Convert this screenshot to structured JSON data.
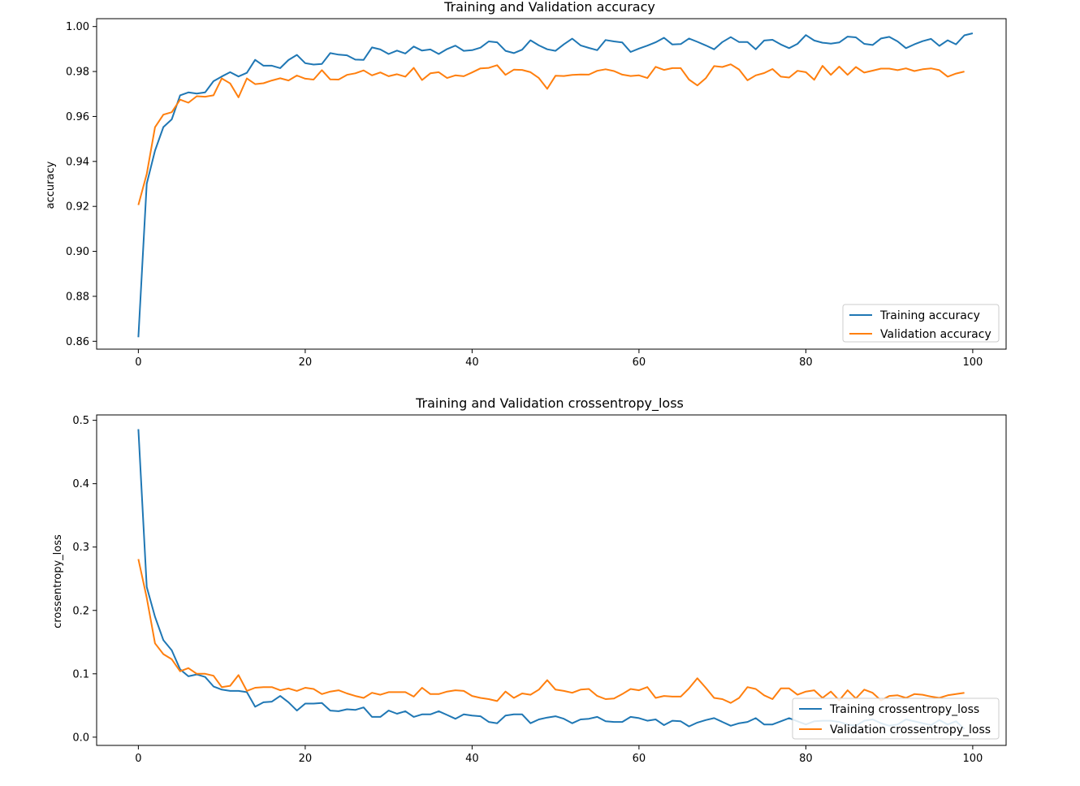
{
  "chart_data": [
    {
      "type": "line",
      "title": "Training and Validation accuracy",
      "xlabel": "",
      "ylabel": "accuracy",
      "xlim": [
        -5,
        104
      ],
      "ylim": [
        0.8565,
        1.0035
      ],
      "xticks": [
        0,
        20,
        40,
        60,
        80,
        100
      ],
      "xtick_labels": [
        "0",
        "20",
        "40",
        "60",
        "80",
        "100"
      ],
      "yticks": [
        0.86,
        0.88,
        0.9,
        0.92,
        0.94,
        0.96,
        0.98,
        1.0
      ],
      "ytick_labels": [
        "0.86",
        "0.88",
        "0.90",
        "0.92",
        "0.94",
        "0.96",
        "0.98",
        "1.00"
      ],
      "grid": false,
      "legend_position": "lower-right",
      "series": [
        {
          "name": "Training accuracy",
          "color": "#1f77b4",
          "values": [
            0.8618,
            0.9301,
            0.9448,
            0.9553,
            0.9587,
            0.9694,
            0.9707,
            0.9702,
            0.9707,
            0.9757,
            0.9778,
            0.9797,
            0.9778,
            0.9794,
            0.9852,
            0.9826,
            0.9826,
            0.9815,
            0.9851,
            0.9874,
            0.9837,
            0.9831,
            0.9834,
            0.9882,
            0.9875,
            0.9872,
            0.9853,
            0.9852,
            0.9907,
            0.9898,
            0.9878,
            0.9893,
            0.988,
            0.9911,
            0.9893,
            0.9898,
            0.9878,
            0.99,
            0.9915,
            0.9892,
            0.9895,
            0.9906,
            0.9934,
            0.993,
            0.9892,
            0.9882,
            0.9897,
            0.9939,
            0.9916,
            0.9899,
            0.9892,
            0.9921,
            0.9946,
            0.9916,
            0.9905,
            0.9895,
            0.994,
            0.9934,
            0.9929,
            0.9887,
            0.9902,
            0.9915,
            0.993,
            0.995,
            0.992,
            0.9922,
            0.9947,
            0.9932,
            0.9916,
            0.9899,
            0.9931,
            0.9953,
            0.9931,
            0.9931,
            0.9899,
            0.9938,
            0.9941,
            0.992,
            0.9904,
            0.9923,
            0.9962,
            0.9938,
            0.9928,
            0.9924,
            0.9929,
            0.9955,
            0.9952,
            0.9923,
            0.9918,
            0.9947,
            0.9954,
            0.9934,
            0.9904,
            0.9921,
            0.9935,
            0.9945,
            0.9914,
            0.9939,
            0.9921,
            0.9961,
            0.997
          ]
        },
        {
          "name": "Validation accuracy",
          "color": "#ff7f0e",
          "values": [
            0.9206,
            0.9344,
            0.9552,
            0.9608,
            0.9619,
            0.9675,
            0.9661,
            0.969,
            0.9688,
            0.9694,
            0.9769,
            0.9747,
            0.9685,
            0.9769,
            0.9744,
            0.9748,
            0.976,
            0.977,
            0.976,
            0.9782,
            0.9768,
            0.9764,
            0.9806,
            0.9765,
            0.9764,
            0.9785,
            0.9792,
            0.9805,
            0.9783,
            0.9796,
            0.9779,
            0.9788,
            0.9777,
            0.9816,
            0.9762,
            0.9792,
            0.9797,
            0.9771,
            0.9783,
            0.9779,
            0.9796,
            0.9814,
            0.9816,
            0.9828,
            0.9785,
            0.9808,
            0.9807,
            0.9797,
            0.9771,
            0.9723,
            0.9781,
            0.978,
            0.9785,
            0.9787,
            0.9786,
            0.9803,
            0.981,
            0.9802,
            0.9786,
            0.978,
            0.9783,
            0.9771,
            0.9821,
            0.9807,
            0.9815,
            0.9815,
            0.9764,
            0.9738,
            0.977,
            0.9824,
            0.982,
            0.9832,
            0.9809,
            0.9761,
            0.9783,
            0.9793,
            0.9811,
            0.9777,
            0.9773,
            0.9803,
            0.9797,
            0.9763,
            0.9825,
            0.9785,
            0.9822,
            0.9785,
            0.982,
            0.9795,
            0.9804,
            0.9813,
            0.9813,
            0.9806,
            0.9814,
            0.9802,
            0.981,
            0.9814,
            0.9806,
            0.9777,
            0.9791,
            0.98
          ]
        }
      ]
    },
    {
      "type": "line",
      "title": "Training and Validation crossentropy_loss",
      "xlabel": "",
      "ylabel": "crossentropy_loss",
      "xlim": [
        -5,
        104
      ],
      "ylim": [
        -0.013,
        0.5085
      ],
      "xticks": [
        0,
        20,
        40,
        60,
        80,
        100
      ],
      "xtick_labels": [
        "0",
        "20",
        "40",
        "60",
        "80",
        "100"
      ],
      "yticks": [
        0.0,
        0.1,
        0.2,
        0.3,
        0.4,
        0.5
      ],
      "ytick_labels": [
        "0.0",
        "0.1",
        "0.2",
        "0.3",
        "0.4",
        "0.5"
      ],
      "grid": false,
      "legend_position": "lower-right",
      "series": [
        {
          "name": "Training crossentropy_loss",
          "color": "#1f77b4",
          "values": [
            0.486,
            0.237,
            0.19,
            0.153,
            0.137,
            0.107,
            0.096,
            0.099,
            0.095,
            0.08,
            0.075,
            0.073,
            0.073,
            0.071,
            0.048,
            0.055,
            0.056,
            0.065,
            0.055,
            0.042,
            0.053,
            0.053,
            0.054,
            0.042,
            0.041,
            0.044,
            0.043,
            0.047,
            0.032,
            0.032,
            0.042,
            0.037,
            0.041,
            0.032,
            0.036,
            0.036,
            0.041,
            0.035,
            0.029,
            0.036,
            0.034,
            0.033,
            0.024,
            0.022,
            0.034,
            0.036,
            0.036,
            0.022,
            0.028,
            0.031,
            0.033,
            0.029,
            0.022,
            0.028,
            0.029,
            0.032,
            0.025,
            0.024,
            0.024,
            0.032,
            0.03,
            0.026,
            0.028,
            0.019,
            0.026,
            0.025,
            0.017,
            0.023,
            0.027,
            0.03,
            0.024,
            0.018,
            0.022,
            0.024,
            0.03,
            0.02,
            0.02,
            0.025,
            0.03,
            0.025,
            0.02,
            0.025,
            0.026,
            0.026,
            0.024,
            0.02,
            0.018,
            0.026,
            0.028,
            0.022,
            0.018,
            0.02,
            0.028,
            0.025,
            0.022,
            0.019,
            0.027,
            0.02,
            0.025,
            0.013
          ]
        },
        {
          "name": "Validation crossentropy_loss",
          "color": "#ff7f0e",
          "values": [
            0.281,
            0.22,
            0.148,
            0.131,
            0.123,
            0.104,
            0.109,
            0.1,
            0.1,
            0.097,
            0.079,
            0.081,
            0.098,
            0.073,
            0.078,
            0.079,
            0.079,
            0.074,
            0.077,
            0.073,
            0.078,
            0.076,
            0.068,
            0.072,
            0.074,
            0.069,
            0.065,
            0.062,
            0.07,
            0.067,
            0.071,
            0.071,
            0.071,
            0.064,
            0.078,
            0.068,
            0.068,
            0.072,
            0.074,
            0.073,
            0.065,
            0.062,
            0.06,
            0.057,
            0.072,
            0.062,
            0.069,
            0.067,
            0.075,
            0.09,
            0.075,
            0.073,
            0.07,
            0.075,
            0.076,
            0.065,
            0.06,
            0.061,
            0.068,
            0.076,
            0.074,
            0.079,
            0.062,
            0.065,
            0.064,
            0.064,
            0.077,
            0.093,
            0.078,
            0.062,
            0.06,
            0.054,
            0.062,
            0.079,
            0.076,
            0.066,
            0.06,
            0.077,
            0.077,
            0.067,
            0.072,
            0.074,
            0.062,
            0.072,
            0.058,
            0.074,
            0.061,
            0.075,
            0.07,
            0.058,
            0.065,
            0.066,
            0.062,
            0.068,
            0.067,
            0.064,
            0.062,
            0.066,
            0.068,
            0.07
          ]
        }
      ]
    }
  ]
}
